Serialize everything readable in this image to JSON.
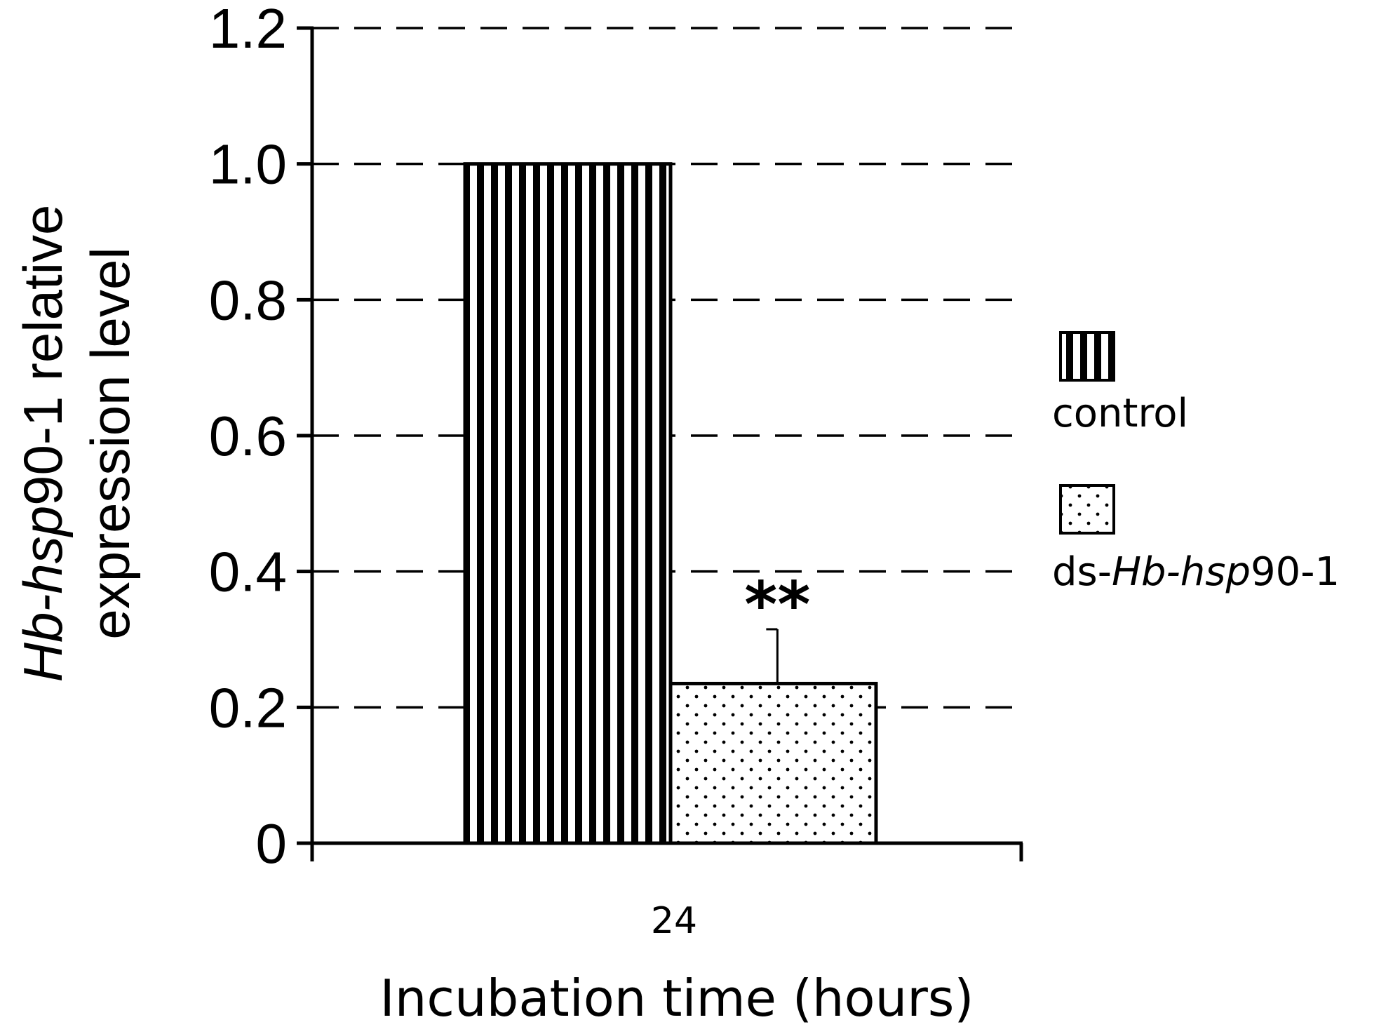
{
  "chart_data": {
    "type": "bar",
    "categories": [
      "24"
    ],
    "series": [
      {
        "name": "control",
        "values": [
          1.0
        ],
        "error": [
          0
        ]
      },
      {
        "name": "ds-Hb-hsp90-1",
        "values": [
          0.235
        ],
        "error": [
          0.08
        ]
      }
    ],
    "significance": "**",
    "ylabel": "Hb-hsp90-1 relative expression level",
    "ylabel_parts": {
      "line1_italic": "Hb-hsp",
      "line1_rest": "90-1 relative",
      "line2": "expression level"
    },
    "xlabel": "Incubation time (hours)",
    "ylim": [
      0,
      1.2
    ],
    "yticks": [
      0,
      0.2,
      0.4,
      0.6,
      0.8,
      1.0,
      1.2
    ],
    "ytick_labels": [
      "0",
      "0.2",
      "0.4",
      "0.6",
      "0.8",
      "1.0",
      "1.2"
    ],
    "grid": "horizontal dashed",
    "legend_position": "right",
    "legend_labels": {
      "control": "control",
      "ds_prefix": "ds-",
      "ds_italic": "Hb-hsp",
      "ds_suffix": "90-1"
    },
    "colors": {
      "axis": "#000000",
      "grid": "#000000",
      "bar_fill": "#ffffff"
    }
  }
}
